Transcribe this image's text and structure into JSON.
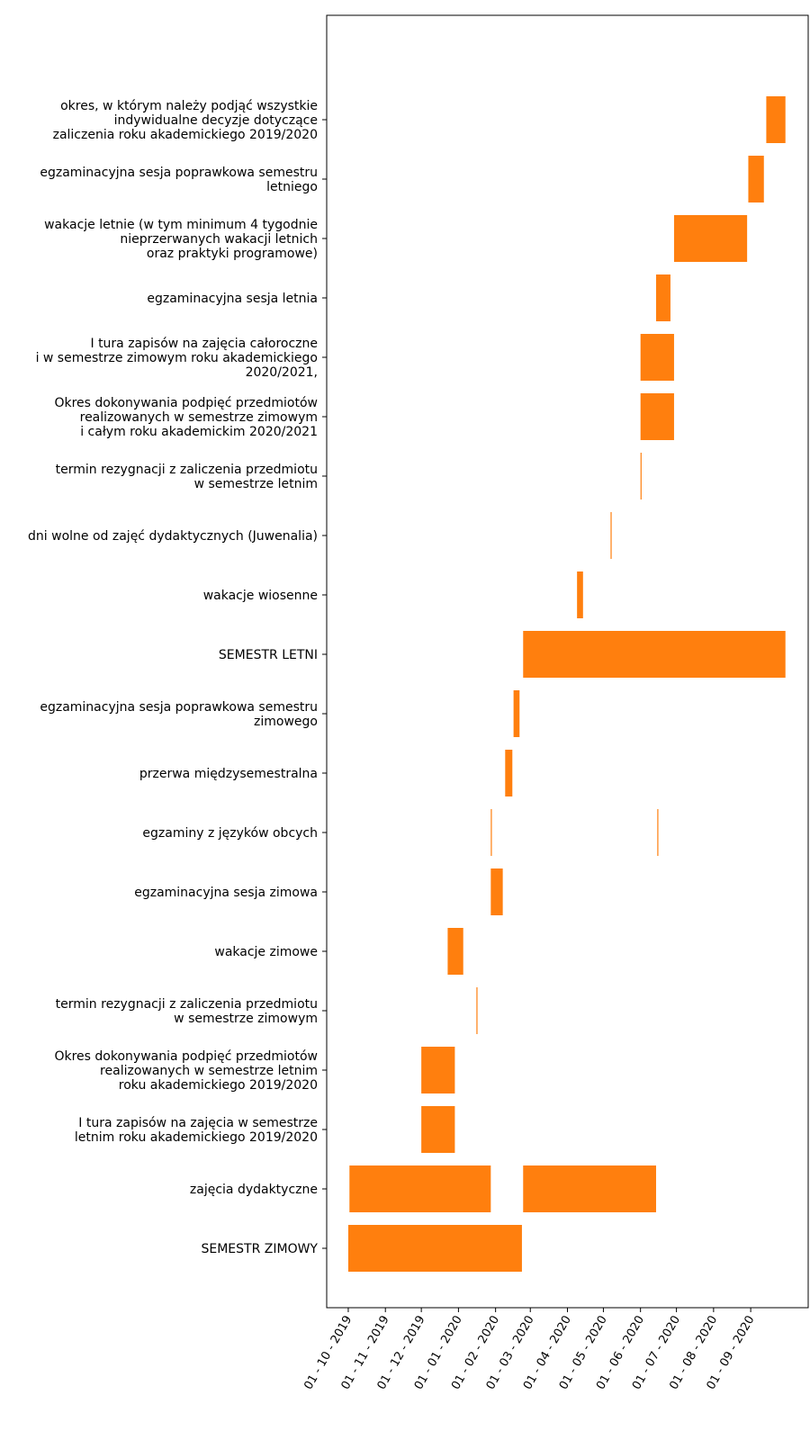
{
  "chart_data": {
    "type": "bar",
    "orientation": "horizontal",
    "color": "#ff7f0e",
    "grid": false,
    "x_axis": {
      "type": "date",
      "ticks": [
        {
          "date": "2019-10-01",
          "label": "01 - 10 - 2019"
        },
        {
          "date": "2019-11-01",
          "label": "01 - 11 - 2019"
        },
        {
          "date": "2019-12-01",
          "label": "01 - 12 - 2019"
        },
        {
          "date": "2020-01-01",
          "label": "01 - 01 - 2020"
        },
        {
          "date": "2020-02-01",
          "label": "01 - 02 - 2020"
        },
        {
          "date": "2020-03-01",
          "label": "01 - 03 - 2020"
        },
        {
          "date": "2020-04-01",
          "label": "01 - 04 - 2020"
        },
        {
          "date": "2020-05-01",
          "label": "01 - 05 - 2020"
        },
        {
          "date": "2020-06-01",
          "label": "01 - 06 - 2020"
        },
        {
          "date": "2020-07-01",
          "label": "01 - 07 - 2020"
        },
        {
          "date": "2020-08-01",
          "label": "01 - 08 - 2020"
        },
        {
          "date": "2020-09-01",
          "label": "01 - 09 - 2020"
        }
      ],
      "range": [
        "2019-09-13",
        "2020-10-19"
      ]
    },
    "rows": [
      {
        "label": [
          "SEMESTR ZIMOWY"
        ],
        "bars": [
          {
            "start": "2019-10-01",
            "end": "2020-02-23"
          }
        ]
      },
      {
        "label": [
          "zajęcia dydaktyczne"
        ],
        "bars": [
          {
            "start": "2019-10-02",
            "end": "2020-01-28"
          },
          {
            "start": "2020-02-24",
            "end": "2020-06-14"
          }
        ]
      },
      {
        "label": [
          "I tura zapisów na zajęcia w semestrze",
          "letnim roku akademickiego 2019/2020"
        ],
        "bars": [
          {
            "start": "2019-12-01",
            "end": "2019-12-29"
          }
        ]
      },
      {
        "label": [
          "Okres dokonywania podpięć przedmiotów",
          "realizowanych w semestrze letnim",
          "roku akademickiego 2019/2020"
        ],
        "bars": [
          {
            "start": "2019-12-01",
            "end": "2019-12-29"
          }
        ]
      },
      {
        "label": [
          "termin rezygnacji z zaliczenia przedmiotu",
          "w semestrze zimowym"
        ],
        "bars": [
          {
            "start": "2020-01-16",
            "end": "2020-01-16"
          }
        ]
      },
      {
        "label": [
          "wakacje zimowe"
        ],
        "bars": [
          {
            "start": "2019-12-23",
            "end": "2020-01-05"
          }
        ]
      },
      {
        "label": [
          "egzaminacyjna sesja zimowa"
        ],
        "bars": [
          {
            "start": "2020-01-28",
            "end": "2020-02-07"
          }
        ]
      },
      {
        "label": [
          "egzaminy z języków obcych"
        ],
        "bars": [
          {
            "start": "2020-01-28",
            "end": "2020-01-28"
          },
          {
            "start": "2020-06-15",
            "end": "2020-06-15"
          }
        ]
      },
      {
        "label": [
          "przerwa międzysemestralna"
        ],
        "bars": [
          {
            "start": "2020-02-09",
            "end": "2020-02-15"
          }
        ]
      },
      {
        "label": [
          "egzaminacyjna sesja poprawkowa semestru",
          "zimowego"
        ],
        "bars": [
          {
            "start": "2020-02-16",
            "end": "2020-02-21"
          }
        ]
      },
      {
        "label": [
          "SEMESTR LETNI"
        ],
        "bars": [
          {
            "start": "2020-02-24",
            "end": "2020-09-30"
          }
        ]
      },
      {
        "label": [
          "wakacje wiosenne"
        ],
        "bars": [
          {
            "start": "2020-04-09",
            "end": "2020-04-14"
          }
        ]
      },
      {
        "label": [
          "dni wolne od zajęć dydaktycznych (Juwenalia)"
        ],
        "bars": [
          {
            "start": "2020-05-07",
            "end": "2020-05-07"
          }
        ]
      },
      {
        "label": [
          "termin rezygnacji z zaliczenia przedmiotu",
          "w semestrze letnim"
        ],
        "bars": [
          {
            "start": "2020-06-01",
            "end": "2020-06-01"
          }
        ]
      },
      {
        "label": [
          "Okres dokonywania podpięć przedmiotów",
          "realizowanych w semestrze zimowym",
          "i całym roku akademickim 2020/2021"
        ],
        "bars": [
          {
            "start": "2020-06-01",
            "end": "2020-06-29"
          }
        ]
      },
      {
        "label": [
          "I tura zapisów na zajęcia całoroczne",
          "i w semestrze zimowym roku akademickiego",
          "2020/2021,"
        ],
        "bars": [
          {
            "start": "2020-06-01",
            "end": "2020-06-29"
          }
        ]
      },
      {
        "label": [
          "egzaminacyjna sesja letnia"
        ],
        "bars": [
          {
            "start": "2020-06-14",
            "end": "2020-06-26"
          }
        ]
      },
      {
        "label": [
          "wakacje letnie (w tym minimum 4 tygodnie",
          "nieprzerwanych wakacji letnich",
          "oraz praktyki programowe)"
        ],
        "bars": [
          {
            "start": "2020-06-29",
            "end": "2020-08-29"
          }
        ]
      },
      {
        "label": [
          "egzaminacyjna sesja poprawkowa semestru",
          "letniego"
        ],
        "bars": [
          {
            "start": "2020-08-30",
            "end": "2020-09-12"
          }
        ]
      },
      {
        "label": [
          "okres, w którym należy podjąć wszystkie",
          "indywidualne decyzje dotyczące",
          "zaliczenia roku akademickiego 2019/2020"
        ],
        "bars": [
          {
            "start": "2020-09-14",
            "end": "2020-09-30"
          }
        ]
      }
    ]
  }
}
